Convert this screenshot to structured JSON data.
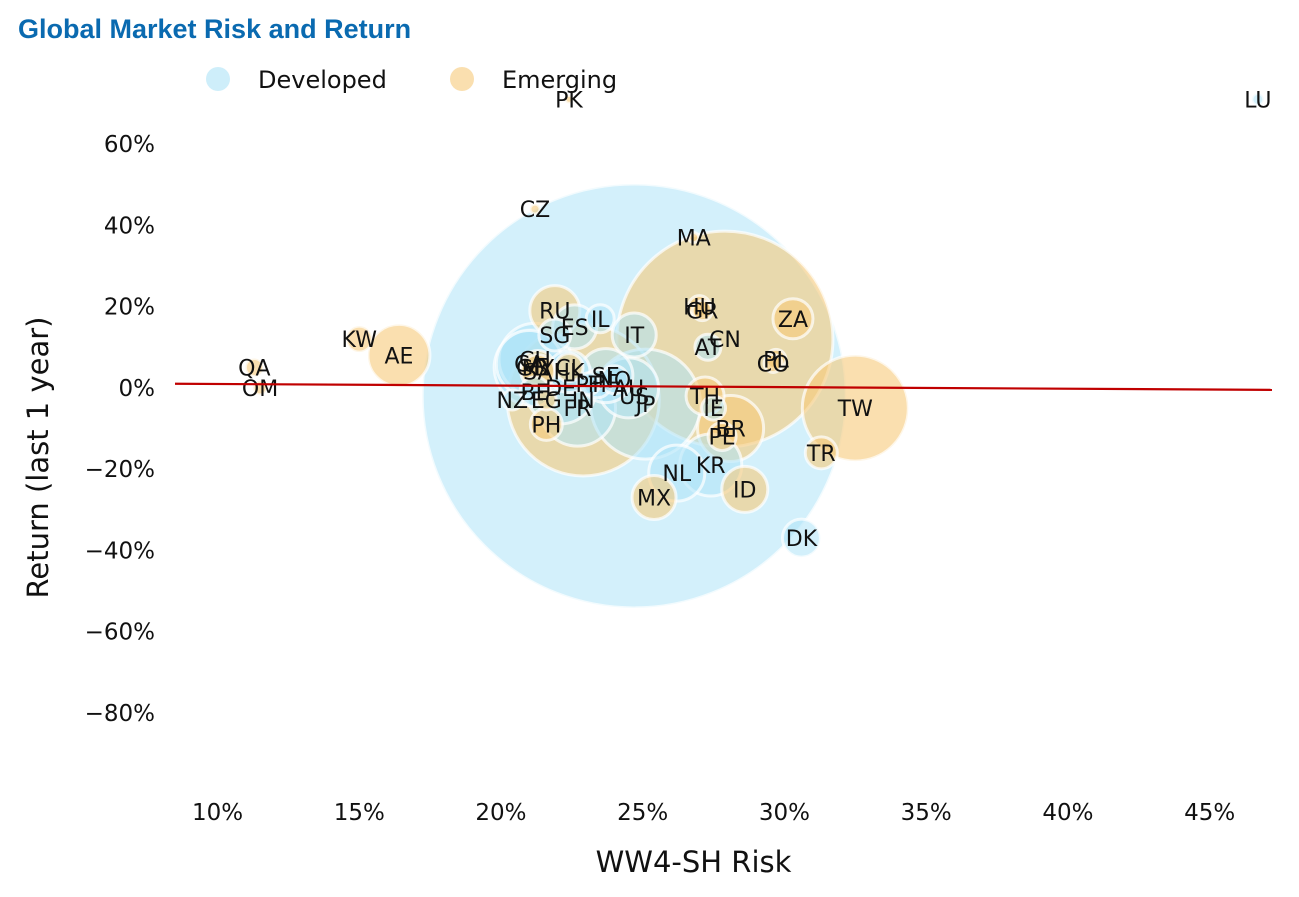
{
  "chart_data": {
    "type": "scatter",
    "title": "Global Market Risk and Return",
    "xlabel": "WW4-SH Risk",
    "ylabel": "Return (last 1 year)",
    "xlim": [
      0.085,
      0.472
    ],
    "ylim": [
      -0.99,
      0.77
    ],
    "x_ticks": [
      0.1,
      0.15,
      0.2,
      0.25,
      0.3,
      0.35,
      0.4,
      0.45
    ],
    "x_tick_labels": [
      "10%",
      "15%",
      "20%",
      "25%",
      "30%",
      "35%",
      "40%",
      "45%"
    ],
    "y_ticks": [
      0.6,
      0.4,
      0.2,
      0.0,
      -0.2,
      -0.4,
      -0.6,
      -0.8
    ],
    "y_tick_labels": [
      "60%",
      "40%",
      "20%",
      "0%",
      "−20%",
      "−40%",
      "−60%",
      "−80%"
    ],
    "legend": {
      "position": "top-left",
      "items": [
        {
          "label": "Developed",
          "color": "#aee3f7"
        },
        {
          "label": "Emerging",
          "color": "#f7c97a"
        }
      ]
    },
    "trend_line": {
      "color": "#c00000",
      "points": [
        [
          0.085,
          0.01
        ],
        [
          0.472,
          -0.005
        ]
      ]
    },
    "series": [
      {
        "name": "Developed",
        "color": "#aee3f7",
        "points": [
          {
            "label": "US",
            "x": 0.247,
            "y": -0.02,
            "size": 212
          },
          {
            "label": "JP",
            "x": 0.251,
            "y": -0.04,
            "size": 55
          },
          {
            "label": "GB",
            "x": 0.211,
            "y": 0.05,
            "size": 38
          },
          {
            "label": "FR",
            "x": 0.227,
            "y": -0.05,
            "size": 38
          },
          {
            "label": "DE",
            "x": 0.221,
            "y": 0.0,
            "size": 36
          },
          {
            "label": "CH",
            "x": 0.212,
            "y": 0.07,
            "size": 36
          },
          {
            "label": "CA",
            "x": 0.21,
            "y": 0.06,
            "size": 33
          },
          {
            "label": "AU",
            "x": 0.245,
            "y": 0.0,
            "size": 30
          },
          {
            "label": "KR",
            "x": 0.274,
            "y": -0.19,
            "size": 31
          },
          {
            "label": "NL",
            "x": 0.262,
            "y": -0.21,
            "size": 28
          },
          {
            "label": "SE",
            "x": 0.237,
            "y": 0.03,
            "size": 27
          },
          {
            "label": "DK",
            "x": 0.306,
            "y": -0.37,
            "size": 19
          },
          {
            "label": "IT",
            "x": 0.247,
            "y": 0.13,
            "size": 22
          },
          {
            "label": "ES",
            "x": 0.226,
            "y": 0.15,
            "size": 22
          },
          {
            "label": "HK",
            "x": 0.224,
            "y": 0.04,
            "size": 21
          },
          {
            "label": "SG",
            "x": 0.219,
            "y": 0.13,
            "size": 16
          },
          {
            "label": "BE",
            "x": 0.212,
            "y": -0.01,
            "size": 15
          },
          {
            "label": "FI",
            "x": 0.234,
            "y": 0.01,
            "size": 14
          },
          {
            "label": "NO",
            "x": 0.24,
            "y": 0.02,
            "size": 14
          },
          {
            "label": "IL",
            "x": 0.235,
            "y": 0.17,
            "size": 14
          },
          {
            "label": "AT",
            "x": 0.273,
            "y": 0.1,
            "size": 13
          },
          {
            "label": "IE",
            "x": 0.275,
            "y": -0.05,
            "size": 12
          },
          {
            "label": "PT",
            "x": 0.231,
            "y": 0.01,
            "size": 11
          },
          {
            "label": "NZ",
            "x": 0.204,
            "y": -0.03,
            "size": 10
          },
          {
            "label": "LU",
            "x": 0.467,
            "y": 0.71,
            "size": 6
          }
        ]
      },
      {
        "name": "Emerging",
        "color": "#f7c97a",
        "points": [
          {
            "label": "CN",
            "x": 0.279,
            "y": 0.12,
            "size": 108
          },
          {
            "label": "IN",
            "x": 0.229,
            "y": -0.03,
            "size": 76
          },
          {
            "label": "TW",
            "x": 0.325,
            "y": -0.05,
            "size": 53
          },
          {
            "label": "BR",
            "x": 0.281,
            "y": -0.1,
            "size": 33
          },
          {
            "label": "AE",
            "x": 0.164,
            "y": 0.08,
            "size": 31
          },
          {
            "label": "RU",
            "x": 0.219,
            "y": 0.19,
            "size": 25
          },
          {
            "label": "ID",
            "x": 0.286,
            "y": -0.25,
            "size": 23
          },
          {
            "label": "MX",
            "x": 0.254,
            "y": -0.27,
            "size": 22
          },
          {
            "label": "ZA",
            "x": 0.303,
            "y": 0.17,
            "size": 20
          },
          {
            "label": "TH",
            "x": 0.272,
            "y": -0.02,
            "size": 19
          },
          {
            "label": "MY",
            "x": 0.213,
            "y": 0.05,
            "size": 17
          },
          {
            "label": "SA",
            "x": 0.213,
            "y": 0.04,
            "size": 17
          },
          {
            "label": "TR",
            "x": 0.313,
            "y": -0.16,
            "size": 16
          },
          {
            "label": "PH",
            "x": 0.216,
            "y": -0.09,
            "size": 16
          },
          {
            "label": "PE",
            "x": 0.278,
            "y": -0.12,
            "size": 14
          },
          {
            "label": "CL",
            "x": 0.224,
            "y": 0.05,
            "size": 14
          },
          {
            "label": "KW",
            "x": 0.15,
            "y": 0.12,
            "size": 13
          },
          {
            "label": "HU",
            "x": 0.27,
            "y": 0.2,
            "size": 11
          },
          {
            "label": "GR",
            "x": 0.271,
            "y": 0.19,
            "size": 10
          },
          {
            "label": "PL",
            "x": 0.297,
            "y": 0.07,
            "size": 10
          },
          {
            "label": "EG",
            "x": 0.216,
            "y": -0.03,
            "size": 10
          },
          {
            "label": "CO",
            "x": 0.296,
            "y": 0.06,
            "size": 9
          },
          {
            "label": "QA",
            "x": 0.113,
            "y": 0.05,
            "size": 9
          },
          {
            "label": "OM",
            "x": 0.115,
            "y": 0.0,
            "size": 7
          },
          {
            "label": "CZ",
            "x": 0.212,
            "y": 0.44,
            "size": 5
          },
          {
            "label": "MA",
            "x": 0.268,
            "y": 0.37,
            "size": 5
          },
          {
            "label": "PK",
            "x": 0.224,
            "y": 0.71,
            "size": 4
          }
        ]
      }
    ]
  }
}
